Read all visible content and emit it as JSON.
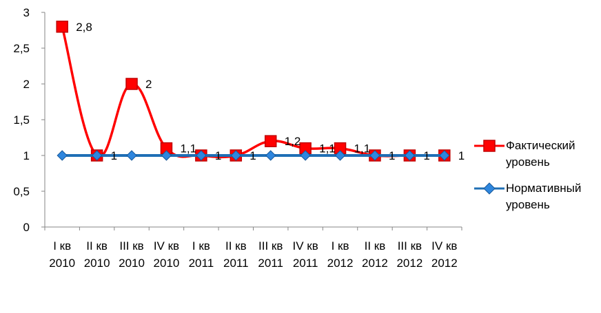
{
  "chart_data": {
    "type": "line",
    "categories": [
      [
        "I кв",
        "2010"
      ],
      [
        "II кв",
        "2010"
      ],
      [
        "III кв",
        "2010"
      ],
      [
        "IV кв",
        "2010"
      ],
      [
        "I кв",
        "2011"
      ],
      [
        "II кв",
        "2011"
      ],
      [
        "III кв",
        "2011"
      ],
      [
        "IV кв",
        "2011"
      ],
      [
        "I кв",
        "2012"
      ],
      [
        "II кв",
        "2012"
      ],
      [
        "III кв",
        "2012"
      ],
      [
        "IV кв",
        "2012"
      ]
    ],
    "ylim": [
      0,
      3
    ],
    "yticks": [
      "0",
      "0,5",
      "1",
      "1,5",
      "2",
      "2,5",
      "3"
    ],
    "ytick_values": [
      0,
      0.5,
      1,
      1.5,
      2,
      2.5,
      3
    ],
    "grid": false,
    "legend_position": "right",
    "series": [
      {
        "name": "Фактический уровень",
        "values": [
          2.8,
          1,
          2,
          1.1,
          1,
          1,
          1.2,
          1.1,
          1.1,
          1,
          1,
          1
        ],
        "labels": [
          "2,8",
          "1",
          "2",
          "1,1",
          "1",
          "1",
          "1,2",
          "1,1",
          "1,1",
          "1",
          "1",
          "1"
        ],
        "color": "#ff0000",
        "marker_color": "#ff0000",
        "marker": "square",
        "smooth": true
      },
      {
        "name": "Нормативный уровень",
        "values": [
          1,
          1,
          1,
          1,
          1,
          1,
          1,
          1,
          1,
          1,
          1,
          1
        ],
        "color": "#1f6fb5",
        "marker_color": "#2e86de",
        "marker": "diamond",
        "smooth": false
      }
    ]
  }
}
